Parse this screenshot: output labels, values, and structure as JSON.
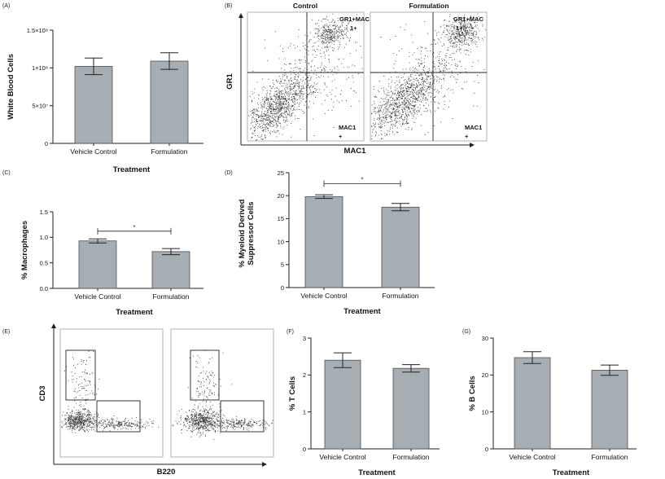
{
  "panels": {
    "A": "(A)",
    "B": "(B)",
    "C": "(C)",
    "D": "(D)",
    "E": "(E)",
    "F": "(F)",
    "G": "(G)"
  },
  "chart_data": [
    {
      "id": "A",
      "type": "bar",
      "categories": [
        "Vehicle Control",
        "Formulation"
      ],
      "values": [
        102000000,
        109000000
      ],
      "errors": [
        11000000,
        11000000
      ],
      "ylim": [
        0,
        150000000
      ],
      "ticks": [
        0,
        50000000,
        100000000,
        150000000
      ],
      "tick_labels": [
        "0",
        "5×10⁷",
        "1×10⁸",
        "1.5×10⁸"
      ],
      "xlabel": "Treatment",
      "ylabel": "White Blood Cells",
      "significance": null
    },
    {
      "id": "C",
      "type": "bar",
      "categories": [
        "Vehicle Control",
        "Formulation"
      ],
      "values": [
        0.93,
        0.72
      ],
      "errors": [
        0.04,
        0.06
      ],
      "ylim": [
        0,
        1.5
      ],
      "ticks": [
        0,
        0.5,
        1.0,
        1.5
      ],
      "tick_labels": [
        "0.0",
        "0.5",
        "1.0",
        "1.5"
      ],
      "xlabel": "Treatment",
      "ylabel": "% Macrophages",
      "significance": {
        "level": 1.12,
        "label": "*"
      }
    },
    {
      "id": "D",
      "type": "bar",
      "categories": [
        "Vehicle Control",
        "Formulation"
      ],
      "values": [
        19.8,
        17.5
      ],
      "errors": [
        0.4,
        0.8
      ],
      "ylim": [
        0,
        25
      ],
      "ticks": [
        0,
        5,
        10,
        15,
        20,
        25
      ],
      "tick_labels": [
        "0",
        "5",
        "10",
        "15",
        "20",
        "25"
      ],
      "xlabel": "Treatment",
      "ylabel": "% Myeloid Derived Suppressor Cells",
      "significance": {
        "level": 22.6,
        "label": "*"
      }
    },
    {
      "id": "F",
      "type": "bar",
      "categories": [
        "Vehicle Control",
        "Formulation"
      ],
      "values": [
        2.4,
        2.18
      ],
      "errors": [
        0.2,
        0.1
      ],
      "ylim": [
        0,
        3
      ],
      "ticks": [
        0,
        1,
        2,
        3
      ],
      "tick_labels": [
        "0",
        "1",
        "2",
        "3"
      ],
      "xlabel": "Treatment",
      "ylabel": "% T Cells",
      "significance": null
    },
    {
      "id": "G",
      "type": "bar",
      "categories": [
        "Vehicle Control",
        "Formulation"
      ],
      "values": [
        24.7,
        21.3
      ],
      "errors": [
        1.6,
        1.4
      ],
      "ylim": [
        0,
        30
      ],
      "ticks": [
        0,
        10,
        20,
        30
      ],
      "tick_labels": [
        "0",
        "10",
        "20",
        "30"
      ],
      "xlabel": "Treatment",
      "ylabel": "% B Cells",
      "significance": null
    }
  ],
  "flow_B": {
    "titles": [
      "Control",
      "Formulation"
    ],
    "xlabel": "MAC1",
    "ylabel": "GR1",
    "gate_top_line1": "GR1+MAC",
    "gate_top_line2": "1+",
    "gate_bottom_line1": "MAC1",
    "gate_bottom_line2": "+"
  },
  "flow_E": {
    "xlabel": "B220",
    "ylabel": "CD3"
  }
}
